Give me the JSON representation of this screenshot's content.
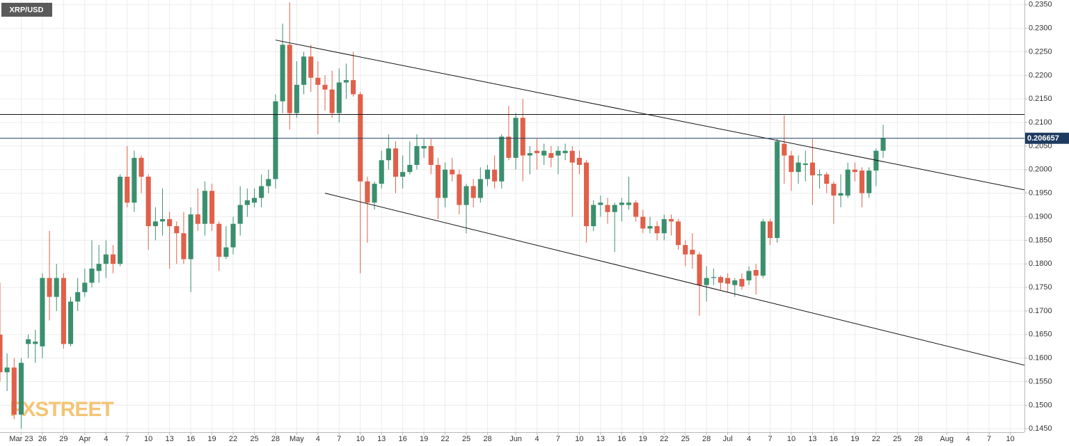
{
  "chart_data": {
    "type": "candlestick",
    "symbol": "XRP/USD",
    "watermark": "FXSTREET",
    "up_color": "#3a8f6e",
    "down_color": "#e0604a",
    "grid": true,
    "x": [
      "Mar 20",
      "Mar 21",
      "Mar 22",
      "Mar 23",
      "Mar 24",
      "Mar 25",
      "Mar 26",
      "Mar 27",
      "Mar 28",
      "Mar 29",
      "Mar 30",
      "Mar 31",
      "Apr 1",
      "Apr 2",
      "Apr 3",
      "Apr 4",
      "Apr 5",
      "Apr 6",
      "Apr 7",
      "Apr 8",
      "Apr 9",
      "Apr 10",
      "Apr 11",
      "Apr 12",
      "Apr 13",
      "Apr 14",
      "Apr 15",
      "Apr 16",
      "Apr 17",
      "Apr 18",
      "Apr 19",
      "Apr 20",
      "Apr 21",
      "Apr 22",
      "Apr 23",
      "Apr 24",
      "Apr 25",
      "Apr 26",
      "Apr 27",
      "Apr 28",
      "Apr 29",
      "Apr 30",
      "May 1",
      "May 2",
      "May 3",
      "May 4",
      "May 5",
      "May 6",
      "May 7",
      "May 8",
      "May 9",
      "May 10",
      "May 11",
      "May 12",
      "May 13",
      "May 14",
      "May 15",
      "May 16",
      "May 17",
      "May 18",
      "May 19",
      "May 20",
      "May 21",
      "May 22",
      "May 23",
      "May 24",
      "May 25",
      "May 26",
      "May 27",
      "May 28",
      "May 29",
      "May 30",
      "May 31",
      "Jun 1",
      "Jun 2",
      "Jun 3",
      "Jun 4",
      "Jun 5",
      "Jun 6",
      "Jun 7",
      "Jun 8",
      "Jun 9",
      "Jun 10",
      "Jun 11",
      "Jun 12",
      "Jun 13",
      "Jun 14",
      "Jun 15",
      "Jun 16",
      "Jun 17",
      "Jun 18",
      "Jun 19",
      "Jun 20",
      "Jun 21",
      "Jun 22",
      "Jun 23",
      "Jun 24",
      "Jun 25",
      "Jun 26",
      "Jun 27",
      "Jun 28",
      "Jun 29",
      "Jun 30",
      "Jul 1",
      "Jul 2",
      "Jul 3",
      "Jul 4",
      "Jul 5",
      "Jul 6",
      "Jul 7",
      "Jul 8",
      "Jul 9",
      "Jul 10",
      "Jul 11",
      "Jul 12",
      "Jul 13",
      "Jul 14",
      "Jul 15",
      "Jul 16",
      "Jul 17",
      "Jul 18",
      "Jul 19",
      "Jul 20",
      "Jul 21",
      "Jul 22",
      "Jul 23"
    ],
    "open": [
      0.165,
      0.157,
      0.158,
      0.148,
      0.163,
      0.163,
      0.1625,
      0.177,
      0.173,
      0.177,
      0.163,
      0.172,
      0.174,
      0.176,
      0.1785,
      0.18,
      0.182,
      0.18,
      0.1985,
      0.193,
      0.2025,
      0.1985,
      0.188,
      0.189,
      0.1895,
      0.188,
      0.1865,
      0.181,
      0.1905,
      0.1885,
      0.1955,
      0.1885,
      0.1815,
      0.1835,
      0.1885,
      0.1925,
      0.193,
      0.194,
      0.1965,
      0.198,
      0.2145,
      0.2265,
      0.212,
      0.218,
      0.224,
      0.2195,
      0.218,
      0.217,
      0.212,
      0.2185,
      0.219,
      0.216,
      0.1975,
      0.193,
      0.197,
      0.202,
      0.2045,
      0.1985,
      0.1995,
      0.201,
      0.2045,
      0.205,
      0.201,
      0.194,
      0.2,
      0.199,
      0.1925,
      0.1965,
      0.194,
      0.198,
      0.2,
      0.1975,
      0.207,
      0.2025,
      0.211,
      0.203,
      0.204,
      0.203,
      0.2035,
      0.203,
      0.2035,
      0.204,
      0.2025,
      0.2015,
      0.188,
      0.1925,
      0.1925,
      0.191,
      0.1925,
      0.1925,
      0.193,
      0.19,
      0.1875,
      0.188,
      0.1865,
      0.1895,
      0.189,
      0.184,
      0.183,
      0.182,
      0.1755,
      0.177,
      0.1772,
      0.177,
      0.1755,
      0.1768,
      0.1765,
      0.1787,
      0.1775,
      0.189,
      0.1855,
      0.2055,
      0.203,
      0.1995,
      0.201,
      0.2015,
      0.1988,
      0.199,
      0.197,
      0.1945,
      0.1945,
      0.2,
      0.1998,
      0.195,
      0.1998,
      0.204
    ],
    "high": [
      0.176,
      0.161,
      0.16,
      0.16,
      0.165,
      0.166,
      0.178,
      0.187,
      0.18,
      0.178,
      0.173,
      0.177,
      0.179,
      0.185,
      0.184,
      0.185,
      0.184,
      0.199,
      0.205,
      0.204,
      0.203,
      0.199,
      0.192,
      0.196,
      0.191,
      0.189,
      0.191,
      0.192,
      0.196,
      0.1975,
      0.197,
      0.189,
      0.188,
      0.19,
      0.1965,
      0.196,
      0.196,
      0.199,
      0.2,
      0.216,
      0.231,
      0.2355,
      0.223,
      0.225,
      0.2265,
      0.223,
      0.22,
      0.221,
      0.2215,
      0.2225,
      0.225,
      0.2165,
      0.1985,
      0.1975,
      0.204,
      0.2075,
      0.206,
      0.203,
      0.206,
      0.2075,
      0.2065,
      0.2065,
      0.2025,
      0.2015,
      0.2025,
      0.2,
      0.197,
      0.198,
      0.2005,
      0.201,
      0.203,
      0.2075,
      0.2135,
      0.212,
      0.215,
      0.205,
      0.2065,
      0.2055,
      0.205,
      0.205,
      0.2055,
      0.205,
      0.204,
      0.202,
      0.1935,
      0.1945,
      0.194,
      0.193,
      0.194,
      0.1985,
      0.1935,
      0.1915,
      0.19,
      0.189,
      0.1905,
      0.1905,
      0.1895,
      0.185,
      0.1865,
      0.1825,
      0.1795,
      0.179,
      0.1775,
      0.178,
      0.177,
      0.178,
      0.1795,
      0.18,
      0.1895,
      0.1895,
      0.2065,
      0.2115,
      0.204,
      0.203,
      0.204,
      0.2065,
      0.2,
      0.1995,
      0.1975,
      0.199,
      0.2015,
      0.2015,
      0.2005,
      0.2005,
      0.2045,
      0.2095
    ],
    "low": [
      0.155,
      0.153,
      0.147,
      0.145,
      0.16,
      0.159,
      0.16,
      0.168,
      0.17,
      0.162,
      0.1625,
      0.17,
      0.173,
      0.175,
      0.176,
      0.177,
      0.178,
      0.1795,
      0.192,
      0.191,
      0.195,
      0.183,
      0.185,
      0.186,
      0.179,
      0.18,
      0.18,
      0.174,
      0.187,
      0.186,
      0.187,
      0.1785,
      0.181,
      0.182,
      0.186,
      0.19,
      0.192,
      0.192,
      0.195,
      0.196,
      0.212,
      0.2085,
      0.211,
      0.216,
      0.2165,
      0.2075,
      0.2125,
      0.211,
      0.21,
      0.215,
      0.2155,
      0.178,
      0.1845,
      0.1915,
      0.196,
      0.2,
      0.195,
      0.196,
      0.199,
      0.2,
      0.2025,
      0.199,
      0.1895,
      0.192,
      0.1975,
      0.1905,
      0.1865,
      0.192,
      0.193,
      0.1965,
      0.196,
      0.196,
      0.202,
      0.2,
      0.1975,
      0.199,
      0.2,
      0.201,
      0.2005,
      0.199,
      0.202,
      0.19,
      0.199,
      0.1845,
      0.187,
      0.19,
      0.1885,
      0.1825,
      0.189,
      0.1915,
      0.189,
      0.1865,
      0.1865,
      0.185,
      0.185,
      0.186,
      0.183,
      0.1795,
      0.179,
      0.169,
      0.172,
      0.1755,
      0.1745,
      0.174,
      0.173,
      0.1745,
      0.1755,
      0.1735,
      0.177,
      0.184,
      0.1845,
      0.197,
      0.1955,
      0.197,
      0.1975,
      0.1925,
      0.196,
      0.195,
      0.1885,
      0.192,
      0.194,
      0.1975,
      0.192,
      0.194,
      0.1965,
      0.2025
    ],
    "close": [
      0.157,
      0.158,
      0.148,
      0.159,
      0.164,
      0.1635,
      0.177,
      0.173,
      0.177,
      0.163,
      0.172,
      0.174,
      0.176,
      0.179,
      0.18,
      0.182,
      0.18,
      0.1985,
      0.193,
      0.2025,
      0.1985,
      0.188,
      0.189,
      0.1895,
      0.188,
      0.1865,
      0.181,
      0.1905,
      0.1885,
      0.1955,
      0.1885,
      0.1815,
      0.1835,
      0.1885,
      0.1925,
      0.1935,
      0.194,
      0.1965,
      0.198,
      0.2145,
      0.2265,
      0.212,
      0.218,
      0.224,
      0.2195,
      0.218,
      0.217,
      0.212,
      0.2185,
      0.219,
      0.216,
      0.1975,
      0.193,
      0.197,
      0.202,
      0.2045,
      0.1985,
      0.1995,
      0.201,
      0.205,
      0.205,
      0.201,
      0.194,
      0.2,
      0.199,
      0.1925,
      0.1965,
      0.194,
      0.198,
      0.2,
      0.1975,
      0.207,
      0.2025,
      0.211,
      0.203,
      0.2035,
      0.2035,
      0.204,
      0.2025,
      0.204,
      0.204,
      0.2015,
      0.201,
      0.188,
      0.1925,
      0.193,
      0.191,
      0.1925,
      0.193,
      0.193,
      0.19,
      0.1875,
      0.188,
      0.1865,
      0.1895,
      0.189,
      0.184,
      0.182,
      0.182,
      0.1755,
      0.177,
      0.1772,
      0.176,
      0.1758,
      0.1765,
      0.1752,
      0.1785,
      0.1775,
      0.189,
      0.1855,
      0.206,
      0.203,
      0.1995,
      0.2015,
      0.2013,
      0.1988,
      0.199,
      0.197,
      0.1945,
      0.195,
      0.2,
      0.1995,
      0.195,
      0.1998,
      0.204,
      0.2067
    ],
    "xlim": [
      "Mar 20",
      "Aug 12"
    ],
    "xticks": [
      {
        "value": "Mar 23",
        "label": "Mar 23"
      },
      {
        "value": "Mar 26",
        "label": "26"
      },
      {
        "value": "Mar 29",
        "label": "29"
      },
      {
        "value": "Apr 1",
        "label": "Apr"
      },
      {
        "value": "Apr 4",
        "label": "4"
      },
      {
        "value": "Apr 7",
        "label": "7"
      },
      {
        "value": "Apr 10",
        "label": "10"
      },
      {
        "value": "Apr 13",
        "label": "13"
      },
      {
        "value": "Apr 16",
        "label": "16"
      },
      {
        "value": "Apr 19",
        "label": "19"
      },
      {
        "value": "Apr 22",
        "label": "22"
      },
      {
        "value": "Apr 25",
        "label": "25"
      },
      {
        "value": "Apr 28",
        "label": "28"
      },
      {
        "value": "May 1",
        "label": "May"
      },
      {
        "value": "May 4",
        "label": "4"
      },
      {
        "value": "May 7",
        "label": "7"
      },
      {
        "value": "May 10",
        "label": "10"
      },
      {
        "value": "May 13",
        "label": "13"
      },
      {
        "value": "May 16",
        "label": "16"
      },
      {
        "value": "May 19",
        "label": "19"
      },
      {
        "value": "May 22",
        "label": "22"
      },
      {
        "value": "May 25",
        "label": "25"
      },
      {
        "value": "May 28",
        "label": "28"
      },
      {
        "value": "Jun 1",
        "label": "Jun"
      },
      {
        "value": "Jun 4",
        "label": "4"
      },
      {
        "value": "Jun 7",
        "label": "7"
      },
      {
        "value": "Jun 10",
        "label": "10"
      },
      {
        "value": "Jun 13",
        "label": "13"
      },
      {
        "value": "Jun 16",
        "label": "16"
      },
      {
        "value": "Jun 19",
        "label": "19"
      },
      {
        "value": "Jun 22",
        "label": "22"
      },
      {
        "value": "Jun 25",
        "label": "25"
      },
      {
        "value": "Jun 28",
        "label": "28"
      },
      {
        "value": "Jul 1",
        "label": "Jul"
      },
      {
        "value": "Jul 4",
        "label": "4"
      },
      {
        "value": "Jul 7",
        "label": "7"
      },
      {
        "value": "Jul 10",
        "label": "10"
      },
      {
        "value": "Jul 13",
        "label": "13"
      },
      {
        "value": "Jul 16",
        "label": "16"
      },
      {
        "value": "Jul 19",
        "label": "19"
      },
      {
        "value": "Jul 22",
        "label": "22"
      },
      {
        "value": "Jul 25",
        "label": "25"
      },
      {
        "value": "Jul 28",
        "label": "28"
      },
      {
        "value": "Aug 1",
        "label": "Aug"
      },
      {
        "value": "Aug 4",
        "label": "4"
      },
      {
        "value": "Aug 7",
        "label": "7"
      },
      {
        "value": "Aug 10",
        "label": "10"
      }
    ],
    "ylim": [
      0.1443,
      0.236
    ],
    "yticks": [
      {
        "value": 0.145,
        "label": "0.1450"
      },
      {
        "value": 0.15,
        "label": "0.1500"
      },
      {
        "value": 0.155,
        "label": "0.1550"
      },
      {
        "value": 0.16,
        "label": "0.1600"
      },
      {
        "value": 0.165,
        "label": "0.1650"
      },
      {
        "value": 0.17,
        "label": "0.1700"
      },
      {
        "value": 0.175,
        "label": "0.1750"
      },
      {
        "value": 0.18,
        "label": "0.1800"
      },
      {
        "value": 0.185,
        "label": "0.1850"
      },
      {
        "value": 0.19,
        "label": "0.1900"
      },
      {
        "value": 0.195,
        "label": "0.1950"
      },
      {
        "value": 0.2,
        "label": "0.2000"
      },
      {
        "value": 0.205,
        "label": "0.2050"
      },
      {
        "value": 0.21,
        "label": "0.2100"
      },
      {
        "value": 0.215,
        "label": "0.2150"
      },
      {
        "value": 0.22,
        "label": "0.2200"
      },
      {
        "value": 0.225,
        "label": "0.2250"
      },
      {
        "value": 0.23,
        "label": "0.2300"
      },
      {
        "value": 0.235,
        "label": "0.2350"
      }
    ],
    "levels": [
      {
        "value": 0.2117,
        "color": "#111111"
      }
    ],
    "last_price": 0.206657,
    "last_price_color": "#1e3a5f",
    "trendlines": [
      {
        "x": [
          "Apr 28",
          "Aug 12"
        ],
        "values": [
          0.2275,
          0.1957
        ],
        "color": "#111111"
      },
      {
        "x": [
          "May 5",
          "Aug 12"
        ],
        "values": [
          0.195,
          0.1585
        ],
        "color": "#111111"
      }
    ]
  }
}
